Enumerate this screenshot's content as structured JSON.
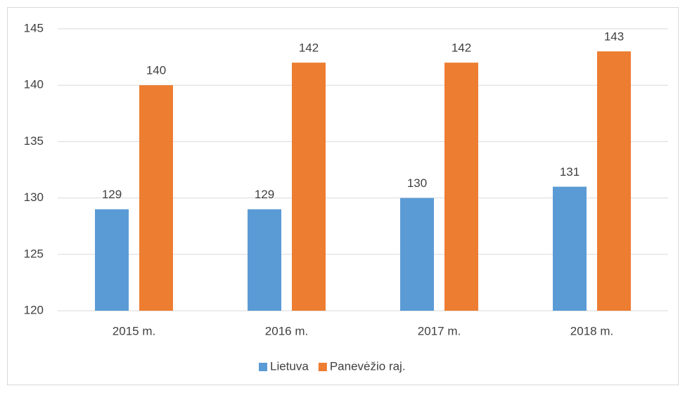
{
  "chart_data": {
    "type": "bar",
    "categories": [
      "2015 m.",
      "2016 m.",
      "2017 m.",
      "2018 m."
    ],
    "series": [
      {
        "name": "Lietuva",
        "color": "#5b9bd5",
        "values": [
          129,
          129,
          130,
          131
        ]
      },
      {
        "name": "Panevėžio raj.",
        "color": "#ed7d31",
        "values": [
          140,
          142,
          142,
          143
        ]
      }
    ],
    "ylim": [
      120,
      145
    ],
    "yticks": [
      120,
      125,
      130,
      135,
      140,
      145
    ],
    "grid": true,
    "legend": "bottom"
  }
}
